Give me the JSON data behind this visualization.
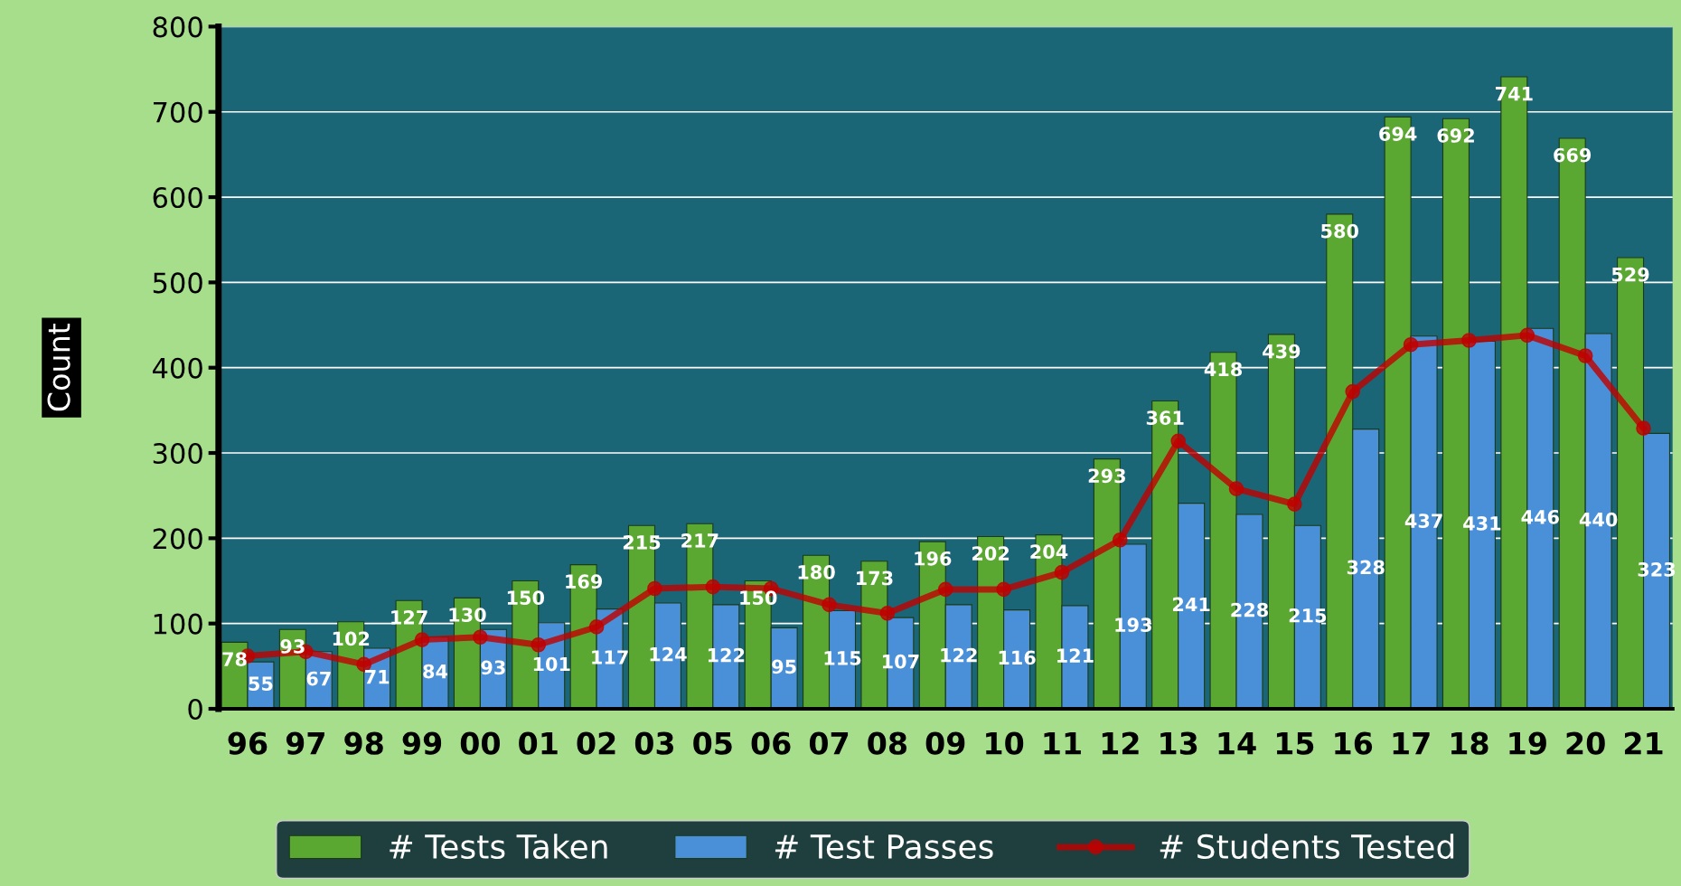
{
  "chart_data": {
    "type": "bar",
    "ylabel": "Count",
    "categories": [
      "96",
      "97",
      "98",
      "99",
      "00",
      "01",
      "02",
      "03",
      "05",
      "06",
      "07",
      "08",
      "09",
      "10",
      "11",
      "12",
      "13",
      "14",
      "15",
      "16",
      "17",
      "18",
      "19",
      "20",
      "21"
    ],
    "series": [
      {
        "name": "# Tests Taken",
        "color": "#5aa832",
        "values": [
          78,
          93,
          102,
          127,
          130,
          150,
          169,
          215,
          217,
          150,
          180,
          173,
          196,
          202,
          204,
          293,
          361,
          418,
          439,
          580,
          694,
          692,
          741,
          669,
          529
        ],
        "value_labels": [
          "78",
          "93",
          "102",
          "127",
          "130",
          "150",
          "169",
          "215",
          "217",
          "150",
          "180",
          "173",
          "196",
          "202",
          "204",
          "293",
          "361",
          "418",
          "439",
          "580",
          "694",
          "692",
          "741",
          "669",
          "529"
        ]
      },
      {
        "name": "# Test Passes",
        "color": "#4a90d8",
        "values": [
          55,
          67,
          71,
          84,
          93,
          101,
          117,
          124,
          122,
          95,
          115,
          107,
          122,
          116,
          121,
          193,
          241,
          228,
          215,
          328,
          437,
          431,
          446,
          440,
          323
        ],
        "value_labels": [
          "55",
          "67",
          "71",
          "84",
          "93",
          "101",
          "117",
          "124",
          "122",
          "95",
          "115",
          "107",
          "122",
          "116",
          "121",
          "193",
          "241",
          "228",
          "215",
          "328",
          "437",
          "431",
          "446",
          "440",
          "323"
        ]
      },
      {
        "name": "# Students Tested",
        "type": "line",
        "color": "#c00000",
        "marker": "circle",
        "values": [
          62,
          67,
          52,
          81,
          84,
          75,
          96,
          141,
          143,
          141,
          122,
          112,
          140,
          140,
          160,
          198,
          314,
          258,
          240,
          372,
          427,
          432,
          438,
          414,
          329
        ]
      }
    ],
    "ylim": [
      0,
      800
    ],
    "yticks": [
      0,
      100,
      200,
      300,
      400,
      500,
      600,
      700,
      800
    ],
    "grid": "y",
    "legend": "bottom"
  }
}
